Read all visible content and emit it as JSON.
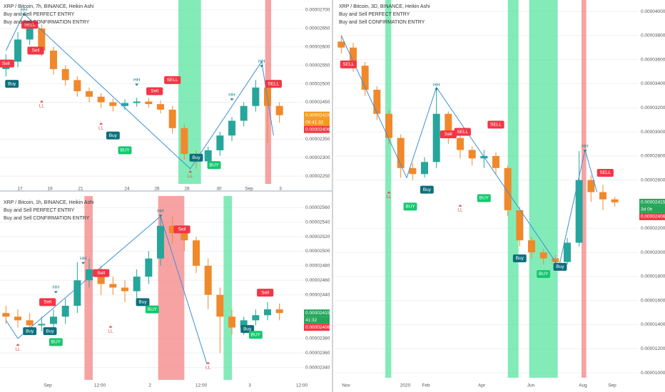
{
  "chart_data": [
    {
      "type": "candlestick",
      "title": "XRP / Bitcoin, 7h, BINANCE, Heikin Ashi",
      "indicators": [
        "Buy and Sell PERFECT ENTRY",
        "Buy and Sell CONFIRMATION ENTRY"
      ],
      "up_color": "#26a69a",
      "down_color": "#f0892b",
      "open": [
        2.54e-05,
        2.56e-05,
        2.62e-05,
        2.65e-05,
        2.59e-05,
        2.54e-05,
        2.51e-05,
        2.48e-05,
        2.465e-05,
        2.45e-05,
        2.44e-05,
        2.448e-05,
        2.452e-05,
        2.445e-05,
        2.43e-05,
        2.38e-05,
        2.31e-05,
        2.29e-05,
        2.32e-05,
        2.36e-05,
        2.4e-05,
        2.44e-05,
        2.49e-05,
        2.44e-05
      ],
      "high": [
        2.58e-05,
        2.64e-05,
        2.67e-05,
        2.66e-05,
        2.6e-05,
        2.55e-05,
        2.52e-05,
        2.49e-05,
        2.475e-05,
        2.46e-05,
        2.458e-05,
        2.462e-05,
        2.462e-05,
        2.455e-05,
        2.44e-05,
        2.39e-05,
        2.32e-05,
        2.33e-05,
        2.37e-05,
        2.41e-05,
        2.45e-05,
        2.51e-05,
        2.5e-05,
        2.45e-05
      ],
      "low": [
        2.52e-05,
        2.545e-05,
        2.605e-05,
        2.575e-05,
        2.525e-05,
        2.495e-05,
        2.465e-05,
        2.45e-05,
        2.435e-05,
        2.425e-05,
        2.43e-05,
        2.438e-05,
        2.435e-05,
        2.42e-05,
        2.365e-05,
        2.295e-05,
        2.27e-05,
        2.28e-05,
        2.305e-05,
        2.345e-05,
        2.385e-05,
        2.425e-05,
        2.34e-05,
        2.395e-05
      ],
      "close": [
        2.56e-05,
        2.62e-05,
        2.65e-05,
        2.59e-05,
        2.54e-05,
        2.51e-05,
        2.48e-05,
        2.465e-05,
        2.45e-05,
        2.44e-05,
        2.448e-05,
        2.452e-05,
        2.445e-05,
        2.43e-05,
        2.38e-05,
        2.31e-05,
        2.29e-05,
        2.32e-05,
        2.36e-05,
        2.4e-05,
        2.44e-05,
        2.49e-05,
        2.44e-05,
        2.415e-05
      ],
      "ylim": [
        2.229e-05,
        2.727e-05
      ],
      "yticks": [
        {
          "value": 2.25e-05,
          "label": "0.00002250"
        },
        {
          "value": 2.3e-05,
          "label": "0.00002300"
        },
        {
          "value": 2.35e-05,
          "label": "0.00002350"
        },
        {
          "value": 2.45e-05,
          "label": "0.00002450"
        },
        {
          "value": 2.5e-05,
          "label": "0.00002500"
        },
        {
          "value": 2.55e-05,
          "label": "0.00002550"
        },
        {
          "value": 2.6e-05,
          "label": "0.00002600"
        },
        {
          "value": 2.65e-05,
          "label": "0.00002650"
        },
        {
          "value": 2.7e-05,
          "label": "0.00002700"
        }
      ],
      "xlabels": [
        "17",
        "19",
        "21",
        "24",
        "26",
        "28",
        "30",
        "Sep",
        "3"
      ],
      "bands": [
        {
          "start": 14.5,
          "end": 16.4,
          "color": "#4fe39a"
        },
        {
          "start": 21.8,
          "end": 22.3,
          "color": "#f47c7c"
        }
      ],
      "zigzag": [
        {
          "i": 0,
          "price": 2.59e-05
        },
        {
          "i": 1.5,
          "price": 2.69e-05
        },
        {
          "i": 15.5,
          "price": 2.27e-05
        },
        {
          "i": 21.5,
          "price": 2.56e-05
        },
        {
          "i": 22.5,
          "price": 2.36e-05
        }
      ],
      "signals": [
        {
          "label": "Sell",
          "kind": "sell",
          "i": 0,
          "price": 2.555e-05
        },
        {
          "label": "SELL",
          "kind": "sell",
          "i": 2,
          "price": 2.66e-05
        },
        {
          "label": "Sell",
          "kind": "sell",
          "i": 2.5,
          "price": 2.59e-05
        },
        {
          "label": "Buy",
          "kind": "buy",
          "i": 0.5,
          "price": 2.5e-05
        },
        {
          "label": "HH",
          "kind": "hh",
          "i": 1.5,
          "price": 2.7e-05
        },
        {
          "label": "LL",
          "kind": "ll",
          "i": 3,
          "price": 2.44e-05
        },
        {
          "label": "LL",
          "kind": "ll",
          "i": 8,
          "price": 2.38e-05
        },
        {
          "label": "Buy",
          "kind": "buy",
          "i": 9,
          "price": 2.36e-05
        },
        {
          "label": "BUY",
          "kind": "buy-confirm",
          "i": 10,
          "price": 2.32e-05
        },
        {
          "label": "HH",
          "kind": "hh",
          "i": 11,
          "price": 2.51e-05
        },
        {
          "label": "Sell",
          "kind": "sell",
          "i": 12.5,
          "price": 2.48e-05
        },
        {
          "label": "SELL",
          "kind": "sell",
          "i": 14,
          "price": 2.51e-05
        },
        {
          "label": "Buy",
          "kind": "buy",
          "i": 16,
          "price": 2.3e-05
        },
        {
          "label": "BUY",
          "kind": "buy-confirm",
          "i": 17.5,
          "price": 2.28e-05
        },
        {
          "label": "LL",
          "kind": "ll",
          "i": 15.5,
          "price": 2.25e-05
        },
        {
          "label": "HH",
          "kind": "hh",
          "i": 19,
          "price": 2.47e-05
        },
        {
          "label": "HH",
          "kind": "hh",
          "i": 21.5,
          "price": 2.56e-05
        },
        {
          "label": "SELL",
          "kind": "sell",
          "i": 22.5,
          "price": 2.5e-05
        }
      ],
      "price_tags": [
        {
          "value": 2.415e-05,
          "label": "0.00002415",
          "color": "#f29b1d"
        },
        {
          "label": "06:41:32",
          "color": "#f29b1d"
        },
        {
          "value": 2.406e-05,
          "label": "0.00002406",
          "color": "#f23645"
        }
      ]
    },
    {
      "type": "candlestick",
      "title": "XRP / Bitcoin, 1h, BINANCE, Heikin Ashi",
      "indicators": [
        "Buy and Sell PERFECT ENTRY",
        "Buy and Sell CONFIRMATION ENTRY"
      ],
      "up_color": "#26a69a",
      "down_color": "#f0892b",
      "open": [
        2.415e-05,
        2.41e-05,
        2.405e-05,
        2.398e-05,
        2.4e-05,
        2.41e-05,
        2.425e-05,
        2.46e-05,
        2.475e-05,
        2.455e-05,
        2.45e-05,
        2.445e-05,
        2.465e-05,
        2.49e-05,
        2.535e-05,
        2.525e-05,
        2.515e-05,
        2.48e-05,
        2.44e-05,
        2.41e-05,
        2.395e-05,
        2.405e-05,
        2.412e-05,
        2.42e-05
      ],
      "high": [
        2.425e-05,
        2.42e-05,
        2.415e-05,
        2.41e-05,
        2.42e-05,
        2.435e-05,
        2.485e-05,
        2.49e-05,
        2.48e-05,
        2.465e-05,
        2.46e-05,
        2.475e-05,
        2.5e-05,
        2.55e-05,
        2.548e-05,
        2.53e-05,
        2.52e-05,
        2.49e-05,
        2.45e-05,
        2.42e-05,
        2.41e-05,
        2.42e-05,
        2.43e-05,
        2.428e-05
      ],
      "low": [
        2.4e-05,
        2.395e-05,
        2.385e-05,
        2.39e-05,
        2.395e-05,
        2.4e-05,
        2.415e-05,
        2.45e-05,
        2.44e-05,
        2.44e-05,
        2.43e-05,
        2.435e-05,
        2.455e-05,
        2.48e-05,
        2.51e-05,
        2.5e-05,
        2.47e-05,
        2.42e-05,
        2.36e-05,
        2.385e-05,
        2.385e-05,
        2.398e-05,
        2.405e-05,
        2.405e-05
      ],
      "close": [
        2.41e-05,
        2.405e-05,
        2.398e-05,
        2.4e-05,
        2.41e-05,
        2.425e-05,
        2.46e-05,
        2.475e-05,
        2.455e-05,
        2.45e-05,
        2.445e-05,
        2.465e-05,
        2.49e-05,
        2.535e-05,
        2.525e-05,
        2.515e-05,
        2.48e-05,
        2.44e-05,
        2.41e-05,
        2.395e-05,
        2.405e-05,
        2.412e-05,
        2.42e-05,
        2.415e-05
      ],
      "ylim": [
        2.323e-05,
        2.576e-05
      ],
      "yticks": [
        {
          "value": 2.34e-05,
          "label": "0.00002340"
        },
        {
          "value": 2.36e-05,
          "label": "0.00002360"
        },
        {
          "value": 2.38e-05,
          "label": "0.00002380"
        },
        {
          "value": 2.44e-05,
          "label": "0.00002440"
        },
        {
          "value": 2.46e-05,
          "label": "0.00002460"
        },
        {
          "value": 2.48e-05,
          "label": "0.00002480"
        },
        {
          "value": 2.5e-05,
          "label": "0.00002500"
        },
        {
          "value": 2.52e-05,
          "label": "0.00002520"
        },
        {
          "value": 2.54e-05,
          "label": "0.00002540"
        },
        {
          "value": 2.56e-05,
          "label": "0.00002560"
        }
      ],
      "xlabels": [
        "Sep",
        "12:00",
        "2",
        "12:00",
        "3",
        "12:00"
      ],
      "bands": [
        {
          "start": 6.6,
          "end": 7.3,
          "color": "#f47c7c"
        },
        {
          "start": 12.8,
          "end": 15,
          "color": "#f47c7c"
        },
        {
          "start": 18.3,
          "end": 19,
          "color": "#4fe39a"
        }
      ],
      "zigzag": [
        {
          "i": 0,
          "price": 2.405e-05
        },
        {
          "i": 1,
          "price": 2.38e-05
        },
        {
          "i": 13,
          "price": 2.548e-05
        },
        {
          "i": 16.9,
          "price": 2.345e-05
        }
      ],
      "signals": [
        {
          "label": "LL",
          "kind": "ll",
          "i": 1,
          "price": 2.365e-05
        },
        {
          "label": "Buy",
          "kind": "buy",
          "i": 2,
          "price": 2.39e-05
        },
        {
          "label": "Buy",
          "kind": "buy",
          "i": 3.7,
          "price": 2.39e-05
        },
        {
          "label": "BUY",
          "kind": "buy-confirm",
          "i": 4.2,
          "price": 2.375e-05
        },
        {
          "label": "Sell",
          "kind": "sell",
          "i": 3.5,
          "price": 2.43e-05
        },
        {
          "label": "HH",
          "kind": "hh",
          "i": 4.2,
          "price": 2.45e-05
        },
        {
          "label": "HH",
          "kind": "hh",
          "i": 6.5,
          "price": 2.49e-05
        },
        {
          "label": "Sell",
          "kind": "sell",
          "i": 8,
          "price": 2.47e-05
        },
        {
          "label": "LL",
          "kind": "ll",
          "i": 8.8,
          "price": 2.39e-05
        },
        {
          "label": "Buy",
          "kind": "buy",
          "i": 11.5,
          "price": 2.43e-05
        },
        {
          "label": "BUY",
          "kind": "buy-confirm",
          "i": 12.3,
          "price": 2.42e-05
        },
        {
          "label": "HH",
          "kind": "hh",
          "i": 13,
          "price": 2.555e-05
        },
        {
          "label": "Sell",
          "kind": "sell",
          "i": 14.8,
          "price": 2.53e-05
        },
        {
          "label": "LL",
          "kind": "ll",
          "i": 17,
          "price": 2.34e-05
        },
        {
          "label": "Buy",
          "kind": "buy",
          "i": 20.3,
          "price": 2.393e-05
        },
        {
          "label": "BUY",
          "kind": "buy-confirm",
          "i": 21,
          "price": 2.385e-05
        },
        {
          "label": "Sell",
          "kind": "sell",
          "i": 21.8,
          "price": 2.443e-05
        }
      ],
      "price_tags": [
        {
          "value": 2.415e-05,
          "label": "0.00002415",
          "color": "#26a65b"
        },
        {
          "label": "41:32",
          "color": "#26a65b"
        },
        {
          "value": 2.406e-05,
          "label": "0.00002406",
          "color": "#f23645"
        }
      ]
    },
    {
      "type": "candlestick",
      "title": "XRP / Bitcoin, 3D, BINANCE, Heikin Ashi",
      "indicators": [
        "Buy and Sell PERFECT ENTRY",
        "Buy and Sell CONFIRMATION ENTRY"
      ],
      "up_color": "#26a69a",
      "down_color": "#f0892b",
      "open": [
        3.75e-05,
        3.7e-05,
        3.55e-05,
        3.35e-05,
        3.15e-05,
        2.95e-05,
        2.7e-05,
        2.65e-05,
        2.75e-05,
        3.15e-05,
        2.95e-05,
        2.85e-05,
        2.78e-05,
        2.8e-05,
        2.7e-05,
        2.35e-05,
        2.1e-05,
        2e-05,
        1.95e-05,
        1.92e-05,
        2.08e-05,
        2.6e-05,
        2.5e-05,
        2.44e-05
      ],
      "high": [
        3.8e-05,
        3.74e-05,
        3.58e-05,
        3.38e-05,
        3.18e-05,
        2.98e-05,
        2.74e-05,
        2.79e-05,
        3.37e-05,
        3.17e-05,
        2.98e-05,
        2.88e-05,
        2.85e-05,
        2.83e-05,
        2.72e-05,
        2.38e-05,
        2.13e-05,
        2.03e-05,
        1.98e-05,
        2.12e-05,
        2.84e-05,
        2.64e-05,
        2.56e-05,
        2.46e-05
      ],
      "low": [
        3.65e-05,
        3.5e-05,
        3.3e-05,
        3.1e-05,
        2.9e-05,
        2.62e-05,
        2.6e-05,
        2.62e-05,
        2.7e-05,
        2.9e-05,
        2.78e-05,
        2.72e-05,
        2.7e-05,
        2.65e-05,
        2.3e-05,
        2.05e-05,
        1.95e-05,
        1.9e-05,
        1.88e-05,
        1.9e-05,
        2.05e-05,
        2.42e-05,
        2.35e-05,
        2.38e-05
      ],
      "close": [
        3.7e-05,
        3.55e-05,
        3.35e-05,
        3.15e-05,
        2.95e-05,
        2.7e-05,
        2.65e-05,
        2.75e-05,
        3.15e-05,
        2.95e-05,
        2.85e-05,
        2.78e-05,
        2.8e-05,
        2.7e-05,
        2.35e-05,
        2.1e-05,
        2e-05,
        1.95e-05,
        1.92e-05,
        2.08e-05,
        2.6e-05,
        2.5e-05,
        2.44e-05,
        2.415e-05
      ],
      "ylim": [
        9.59e-06,
        4.095e-05
      ],
      "yticks": [
        {
          "value": 1e-05,
          "label": "0.00001000"
        },
        {
          "value": 1.2e-05,
          "label": "0.00001200"
        },
        {
          "value": 1.4e-05,
          "label": "0.00001400"
        },
        {
          "value": 1.6e-05,
          "label": "0.00001600"
        },
        {
          "value": 1.8e-05,
          "label": "0.00001800"
        },
        {
          "value": 2e-05,
          "label": "0.00002000"
        },
        {
          "value": 2.2e-05,
          "label": "0.00002200"
        },
        {
          "value": 2.6e-05,
          "label": "0.00002600"
        },
        {
          "value": 2.8e-05,
          "label": "0.00002800"
        },
        {
          "value": 3e-05,
          "label": "0.00003000"
        },
        {
          "value": 3.2e-05,
          "label": "0.00003200"
        },
        {
          "value": 3.4e-05,
          "label": "0.00003400"
        },
        {
          "value": 3.6e-05,
          "label": "0.00003600"
        },
        {
          "value": 3.8e-05,
          "label": "0.00003800"
        },
        {
          "value": 4e-05,
          "label": "0.00004000"
        }
      ],
      "xlabels": [
        "Nov",
        "2020",
        "Feb",
        "Apr",
        "Jun",
        "Aug",
        "Sep"
      ],
      "bands": [
        {
          "start": 3.7,
          "end": 4.2,
          "color": "#4fe39a"
        },
        {
          "start": 14,
          "end": 14.9,
          "color": "#4fe39a"
        },
        {
          "start": 15.8,
          "end": 18.2,
          "color": "#4fe39a"
        },
        {
          "start": 20.2,
          "end": 20.6,
          "color": "#f47c7c"
        }
      ],
      "zigzag": [
        {
          "i": 0,
          "price": 3.8e-05
        },
        {
          "i": 5.5,
          "price": 2.62e-05
        },
        {
          "i": 8,
          "price": 3.37e-05
        },
        {
          "i": 18.3,
          "price": 1.88e-05
        },
        {
          "i": 20.5,
          "price": 2.85e-05
        },
        {
          "i": 21.5,
          "price": 2.5e-05
        }
      ],
      "signals": [
        {
          "label": "SELL",
          "kind": "sell",
          "i": 0.6,
          "price": 3.56e-05
        },
        {
          "label": "LL",
          "kind": "ll",
          "i": 4,
          "price": 2.46e-05
        },
        {
          "label": "Buy",
          "kind": "buy",
          "i": 7.2,
          "price": 2.52e-05
        },
        {
          "label": "BUY",
          "kind": "buy-confirm",
          "i": 5.8,
          "price": 2.38e-05
        },
        {
          "label": "HH",
          "kind": "hh",
          "i": 8,
          "price": 3.39e-05
        },
        {
          "label": "Sell",
          "kind": "sell",
          "i": 9,
          "price": 2.98e-05
        },
        {
          "label": "SELL",
          "kind": "sell",
          "i": 10.2,
          "price": 3e-05
        },
        {
          "label": "LL",
          "kind": "ll",
          "i": 10,
          "price": 2.35e-05
        },
        {
          "label": "BUY",
          "kind": "buy-confirm",
          "i": 12,
          "price": 2.45e-05
        },
        {
          "label": "SELL",
          "kind": "sell",
          "i": 13,
          "price": 3.06e-05
        },
        {
          "label": "Buy",
          "kind": "buy",
          "i": 15,
          "price": 1.95e-05
        },
        {
          "label": "BUY",
          "kind": "buy-confirm",
          "i": 17,
          "price": 1.82e-05
        },
        {
          "label": "Buy",
          "kind": "buy",
          "i": 18.4,
          "price": 1.88e-05
        },
        {
          "label": "HH",
          "kind": "hh",
          "i": 20.5,
          "price": 2.88e-05
        },
        {
          "label": "SELL",
          "kind": "sell",
          "i": 22.2,
          "price": 2.66e-05
        }
      ],
      "price_tags": [
        {
          "value": 2.415e-05,
          "label": "0.00002415",
          "color": "#26a65b"
        },
        {
          "label": "3d 0h",
          "color": "#26a65b"
        },
        {
          "value": 2.406e-05,
          "label": "0.00002406",
          "color": "#f23645"
        }
      ]
    }
  ],
  "signal_colors": {
    "sell": "#f23645",
    "buy": "#0e6f7c",
    "buy-confirm": "#14c86e",
    "hh": "#138484",
    "ll": "#e5484d"
  },
  "zigzag_color": "#3d8fd6"
}
